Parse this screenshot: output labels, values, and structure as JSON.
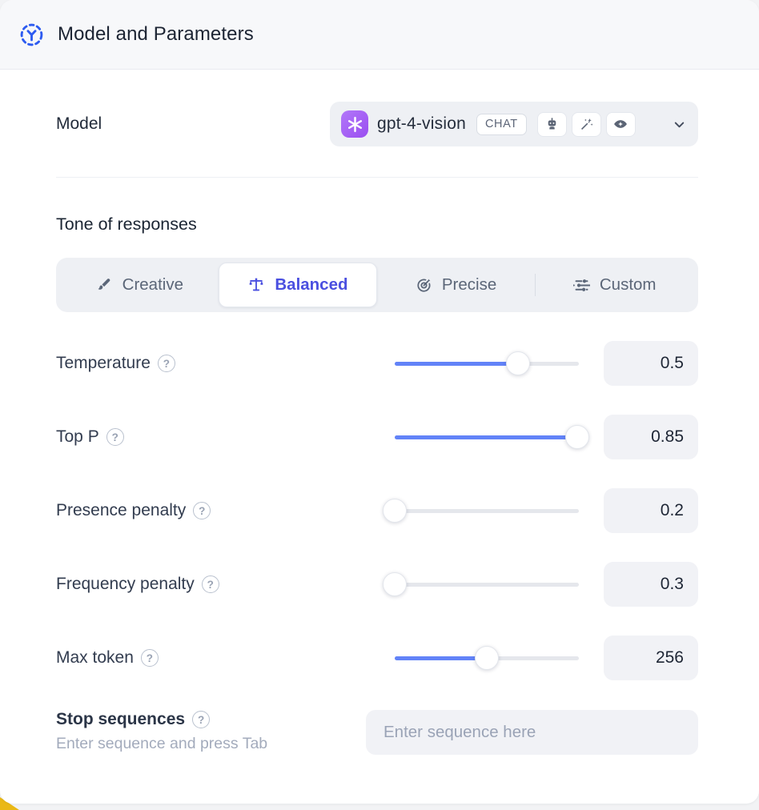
{
  "header": {
    "title": "Model and Parameters"
  },
  "model": {
    "label": "Model",
    "name": "gpt-4-vision",
    "type_badge": "CHAT",
    "capability_icons": [
      "robot-icon",
      "magic-wand-icon",
      "vision-eye-icon"
    ]
  },
  "tone": {
    "heading": "Tone of responses",
    "selected": "Balanced",
    "options": [
      {
        "label": "Creative",
        "icon": "paintbrush-icon"
      },
      {
        "label": "Balanced",
        "icon": "balance-scale-icon"
      },
      {
        "label": "Precise",
        "icon": "target-icon"
      },
      {
        "label": "Custom",
        "icon": "sliders-icon"
      }
    ]
  },
  "parameters": [
    {
      "label": "Temperature",
      "value": "0.5",
      "slider_percent": 67
    },
    {
      "label": "Top P",
      "value": "0.85",
      "slider_percent": 99
    },
    {
      "label": "Presence penalty",
      "value": "0.2",
      "slider_percent": 0
    },
    {
      "label": "Frequency penalty",
      "value": "0.3",
      "slider_percent": 0
    },
    {
      "label": "Max token",
      "value": "256",
      "slider_percent": 50
    }
  ],
  "stop_sequences": {
    "label": "Stop sequences",
    "helper": "Enter sequence and press Tab",
    "placeholder": "Enter sequence here"
  },
  "icons": {
    "help_glyph": "?"
  },
  "colors": {
    "slider_blue": "#6283f8",
    "selected_indigo": "#4a4fe0",
    "avatar_purple": "#9a4ef0",
    "header_bg": "#f7f8fa",
    "field_bg": "#f1f2f6",
    "corner_yellow": "#eab815"
  }
}
